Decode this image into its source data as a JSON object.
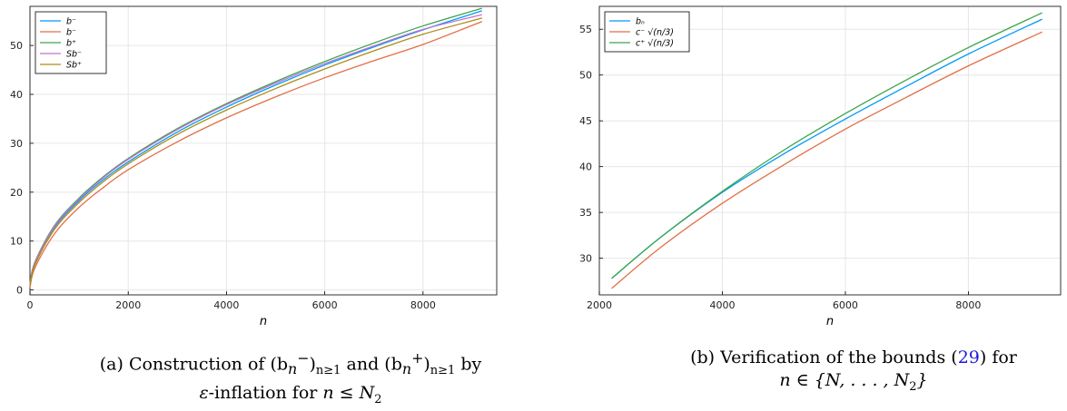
{
  "chart_data": [
    {
      "type": "line",
      "xlabel": "n",
      "ylabel": "",
      "xlim": [
        0,
        9500
      ],
      "ylim": [
        -1,
        58
      ],
      "xticks": [
        0,
        2000,
        4000,
        6000,
        8000
      ],
      "yticks": [
        0,
        10,
        20,
        30,
        40,
        50
      ],
      "grid": true,
      "legend_position": "top-left",
      "series": [
        {
          "name": "b⁻",
          "color": "#009af9",
          "points": [
            [
              0,
              1
            ],
            [
              100,
              5.4
            ],
            [
              500,
              12.8
            ],
            [
              1000,
              18.3
            ],
            [
              1500,
              22.6
            ],
            [
              2000,
              26.2
            ],
            [
              3000,
              32.3
            ],
            [
              4000,
              37.4
            ],
            [
              5000,
              41.9
            ],
            [
              6000,
              46.0
            ],
            [
              7000,
              49.7
            ],
            [
              8000,
              53.2
            ],
            [
              9200,
              57.1
            ]
          ]
        },
        {
          "name": "b⁻",
          "color": "#e26f46",
          "points": [
            [
              0,
              0.5
            ],
            [
              100,
              4.5
            ],
            [
              500,
              11.5
            ],
            [
              1000,
              16.9
            ],
            [
              1500,
              21.0
            ],
            [
              2000,
              24.6
            ],
            [
              3000,
              30.3
            ],
            [
              4000,
              35.2
            ],
            [
              5000,
              39.5
            ],
            [
              6000,
              43.4
            ],
            [
              7000,
              46.9
            ],
            [
              8000,
              50.2
            ],
            [
              9200,
              54.9
            ]
          ]
        },
        {
          "name": "b⁺",
          "color": "#3da44d",
          "points": [
            [
              0,
              1.3
            ],
            [
              100,
              5.7
            ],
            [
              500,
              13.2
            ],
            [
              1000,
              18.8
            ],
            [
              1500,
              23.2
            ],
            [
              2000,
              26.9
            ],
            [
              3000,
              33.0
            ],
            [
              4000,
              38.1
            ],
            [
              5000,
              42.6
            ],
            [
              6000,
              46.7
            ],
            [
              7000,
              50.5
            ],
            [
              8000,
              54.0
            ],
            [
              9200,
              57.6
            ]
          ]
        },
        {
          "name": "Sb⁻",
          "color": "#c271d2",
          "points": [
            [
              0,
              1.1
            ],
            [
              100,
              5.5
            ],
            [
              500,
              13.0
            ],
            [
              1000,
              18.6
            ],
            [
              1500,
              23.0
            ],
            [
              2000,
              26.7
            ],
            [
              3000,
              32.8
            ],
            [
              4000,
              37.9
            ],
            [
              5000,
              42.3
            ],
            [
              6000,
              46.3
            ],
            [
              7000,
              49.9
            ],
            [
              8000,
              53.3
            ],
            [
              9200,
              56.3
            ]
          ]
        },
        {
          "name": "Sb⁺",
          "color": "#ac8d18",
          "points": [
            [
              0,
              0.8
            ],
            [
              100,
              5.1
            ],
            [
              500,
              12.4
            ],
            [
              1000,
              17.9
            ],
            [
              1500,
              22.2
            ],
            [
              2000,
              25.8
            ],
            [
              3000,
              31.8
            ],
            [
              4000,
              36.8
            ],
            [
              5000,
              41.2
            ],
            [
              6000,
              45.2
            ],
            [
              7000,
              48.9
            ],
            [
              8000,
              52.3
            ],
            [
              9200,
              55.6
            ]
          ]
        }
      ]
    },
    {
      "type": "line",
      "xlabel": "n",
      "ylabel": "",
      "xlim": [
        2000,
        9500
      ],
      "ylim": [
        26,
        57.5
      ],
      "xticks": [
        2000,
        4000,
        6000,
        8000
      ],
      "yticks": [
        30,
        35,
        40,
        45,
        50,
        55
      ],
      "grid": true,
      "legend_position": "top-left",
      "series": [
        {
          "name": "bₙ",
          "color": "#009af9",
          "points": [
            [
              2200,
              27.8
            ],
            [
              3000,
              32.3
            ],
            [
              4000,
              37.2
            ],
            [
              5000,
              41.4
            ],
            [
              6000,
              45.2
            ],
            [
              7000,
              48.8
            ],
            [
              8000,
              52.3
            ],
            [
              9200,
              56.1
            ]
          ]
        },
        {
          "name": "c⁻ √(n/3)",
          "color": "#e26f46",
          "points": [
            [
              2200,
              26.7
            ],
            [
              3000,
              31.2
            ],
            [
              4000,
              36.0
            ],
            [
              5000,
              40.2
            ],
            [
              6000,
              44.1
            ],
            [
              7000,
              47.6
            ],
            [
              8000,
              51.0
            ],
            [
              9200,
              54.7
            ]
          ]
        },
        {
          "name": "c⁺ √(n/3)",
          "color": "#3da44d",
          "points": [
            [
              2200,
              27.8
            ],
            [
              3000,
              32.3
            ],
            [
              4000,
              37.3
            ],
            [
              5000,
              41.8
            ],
            [
              6000,
              45.8
            ],
            [
              7000,
              49.5
            ],
            [
              8000,
              53.0
            ],
            [
              9200,
              56.8
            ]
          ]
        }
      ]
    }
  ],
  "captions": {
    "a_line1": "(a) Construction of (b",
    "a_line1_sub1": "n",
    "a_line1_sup1": "−",
    "a_line1_mid": ")",
    "a_line1_sub2": "n≥1",
    "a_line1_and": " and (b",
    "a_line1_sub3": "n",
    "a_line1_sup3": "+",
    "a_line1_close": ")",
    "a_line1_sub4": "n≥1",
    "a_line1_end": " by",
    "a_line2_eps": "ε",
    "a_line2_text": "-inflation for ",
    "a_line2_math": "n ≤ N",
    "a_line2_sub": "2",
    "b_line1": "(b) Verification of the bounds (",
    "b_line1_cite": "29",
    "b_line1_end": ") for",
    "b_line2_math": "n ∈ {N, . . . , N",
    "b_line2_sub": "2",
    "b_line2_end": "}"
  }
}
